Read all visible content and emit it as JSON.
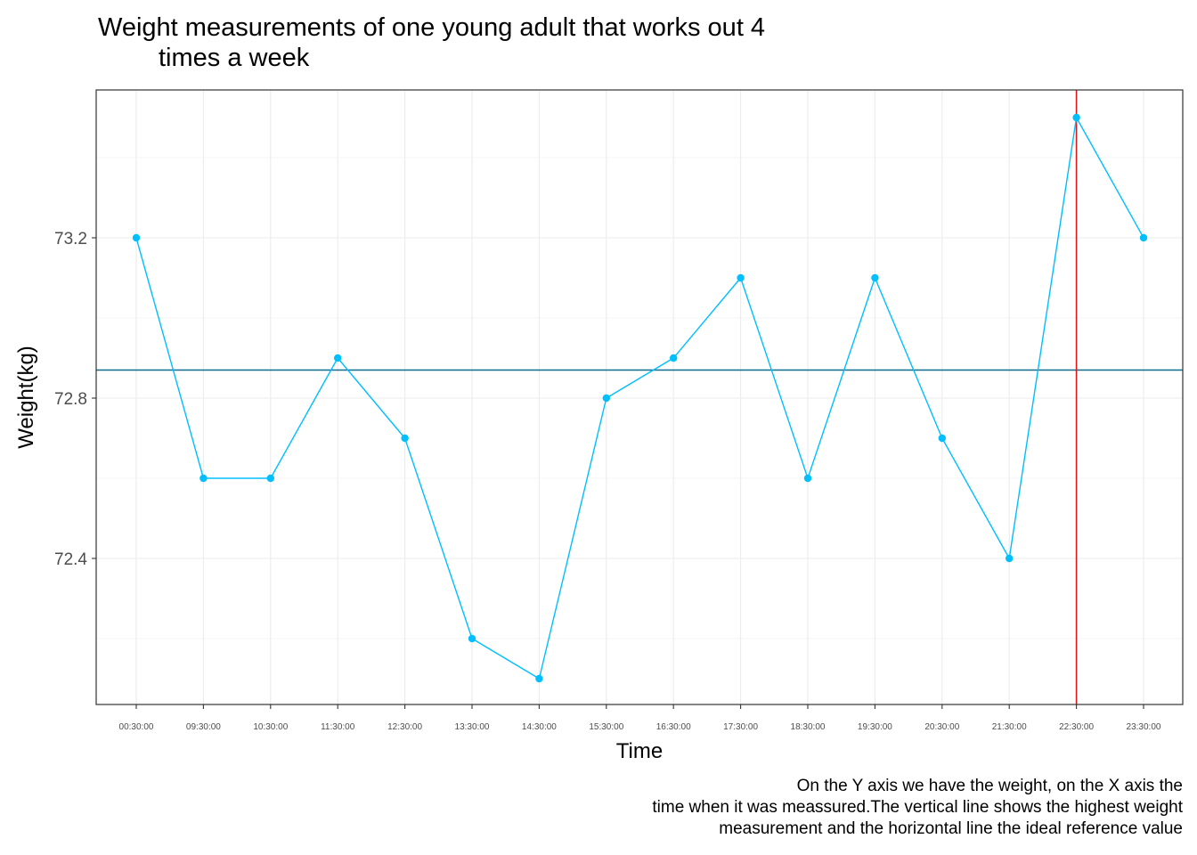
{
  "chart_data": {
    "type": "line",
    "title_line1": "Weight measurements of one young adult that works out 4",
    "title_line2": "times a week",
    "xlabel": "Time",
    "ylabel": "Weight(kg)",
    "caption_lines": [
      "On the Y axis we have the weight, on the X axis the",
      "time when it was meassured.The vertical line shows the highest weight",
      "measurement and the horizontal line the ideal reference value"
    ],
    "categories": [
      "00:30:00",
      "09:30:00",
      "10:30:00",
      "11:30:00",
      "12:30:00",
      "13:30:00",
      "14:30:00",
      "15:30:00",
      "16:30:00",
      "17:30:00",
      "18:30:00",
      "19:30:00",
      "20:30:00",
      "21:30:00",
      "22:30:00",
      "23:30:00"
    ],
    "values": [
      73.2,
      72.6,
      72.6,
      72.9,
      72.7,
      72.2,
      72.1,
      72.8,
      72.9,
      73.1,
      72.6,
      73.1,
      72.7,
      72.4,
      73.5,
      73.2
    ],
    "yticks": [
      72.4,
      72.8,
      73.2
    ],
    "ylim": [
      72.03,
      73.57
    ],
    "hline": 72.87,
    "vline_category": "22:30:00",
    "grid": true,
    "colors": {
      "series": "#00BFFF",
      "hline": "#0E6B8C",
      "vline": "#D7191C",
      "grid": "#EBEBEB",
      "panel_border": "#333333"
    }
  }
}
